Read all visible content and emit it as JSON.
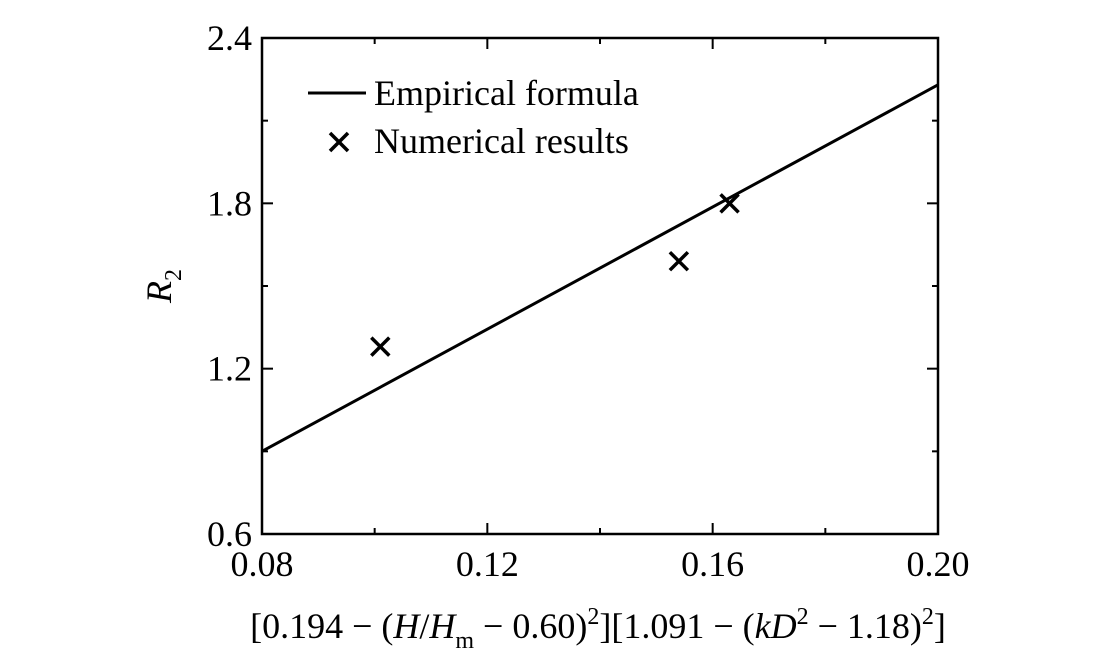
{
  "chart_data": {
    "type": "scatter",
    "title": "",
    "xlabel": {
      "parts": [
        "[0.194 − (",
        "H",
        "/",
        "H",
        "m",
        " − 0.60)",
        "2",
        "][1.091 − (",
        "kD",
        "2",
        " − 1.18)",
        "2",
        "]"
      ]
    },
    "ylabel": {
      "main": "R",
      "sub": "2"
    },
    "xlim": [
      0.08,
      0.2
    ],
    "ylim": [
      0.6,
      2.4
    ],
    "xticks": [
      "0.08",
      "0.12",
      "0.16",
      "0.20"
    ],
    "yticks": [
      "0.6",
      "1.2",
      "1.8",
      "2.4"
    ],
    "x_minor_step": 0.02,
    "y_minor_step": 0.3,
    "grid": false,
    "legend_position": "top-left",
    "series": [
      {
        "name": "Empirical formula",
        "kind": "line",
        "color": "#000000",
        "x": [
          0.08,
          0.2
        ],
        "y": [
          0.9,
          2.23
        ]
      },
      {
        "name": "Numerical results",
        "kind": "scatter",
        "marker": "x",
        "color": "#000000",
        "x": [
          0.101,
          0.154,
          0.163
        ],
        "y": [
          1.28,
          1.59,
          1.8
        ]
      }
    ]
  }
}
